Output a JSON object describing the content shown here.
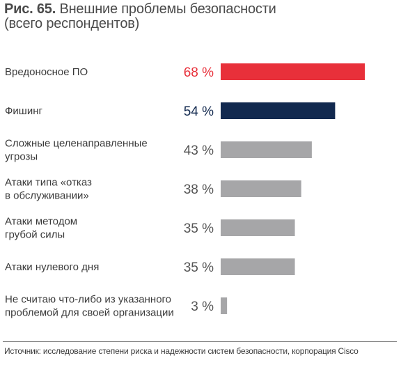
{
  "title": {
    "figure_label": "Рис. 65.",
    "text": "Внешние проблемы безопасности",
    "subtitle": "(всего респондентов)"
  },
  "source": "Источник: исследование степени риска и надежности систем безопасности, корпорация Cisco",
  "colors": {
    "highlight": "#e8303a",
    "secondary": "#12294f",
    "default": "#a6a6a8",
    "default_text": "#555555"
  },
  "chart_data": {
    "type": "bar",
    "orientation": "horizontal",
    "title": "Внешние проблемы безопасности",
    "subtitle": "(всего респондентов)",
    "xlim": [
      0,
      68
    ],
    "grid": false,
    "categories": [
      [
        "Вредоносное ПО"
      ],
      [
        "Фишинг"
      ],
      [
        "Сложные целенаправленные",
        "угрозы"
      ],
      [
        "Атаки типа «отказ",
        "в обслуживании»"
      ],
      [
        "Атаки методом",
        "грубой силы"
      ],
      [
        "Атаки нулевого дня"
      ],
      [
        "Не считаю что-либо из указанного",
        "проблемой для своей организации"
      ]
    ],
    "values": [
      68,
      54,
      43,
      38,
      35,
      35,
      3
    ],
    "value_labels": [
      "68 %",
      "54 %",
      "43 %",
      "38 %",
      "35 %",
      "35 %",
      "3 %"
    ],
    "bar_colors": [
      "highlight",
      "secondary",
      "default",
      "default",
      "default",
      "default",
      "default"
    ]
  }
}
